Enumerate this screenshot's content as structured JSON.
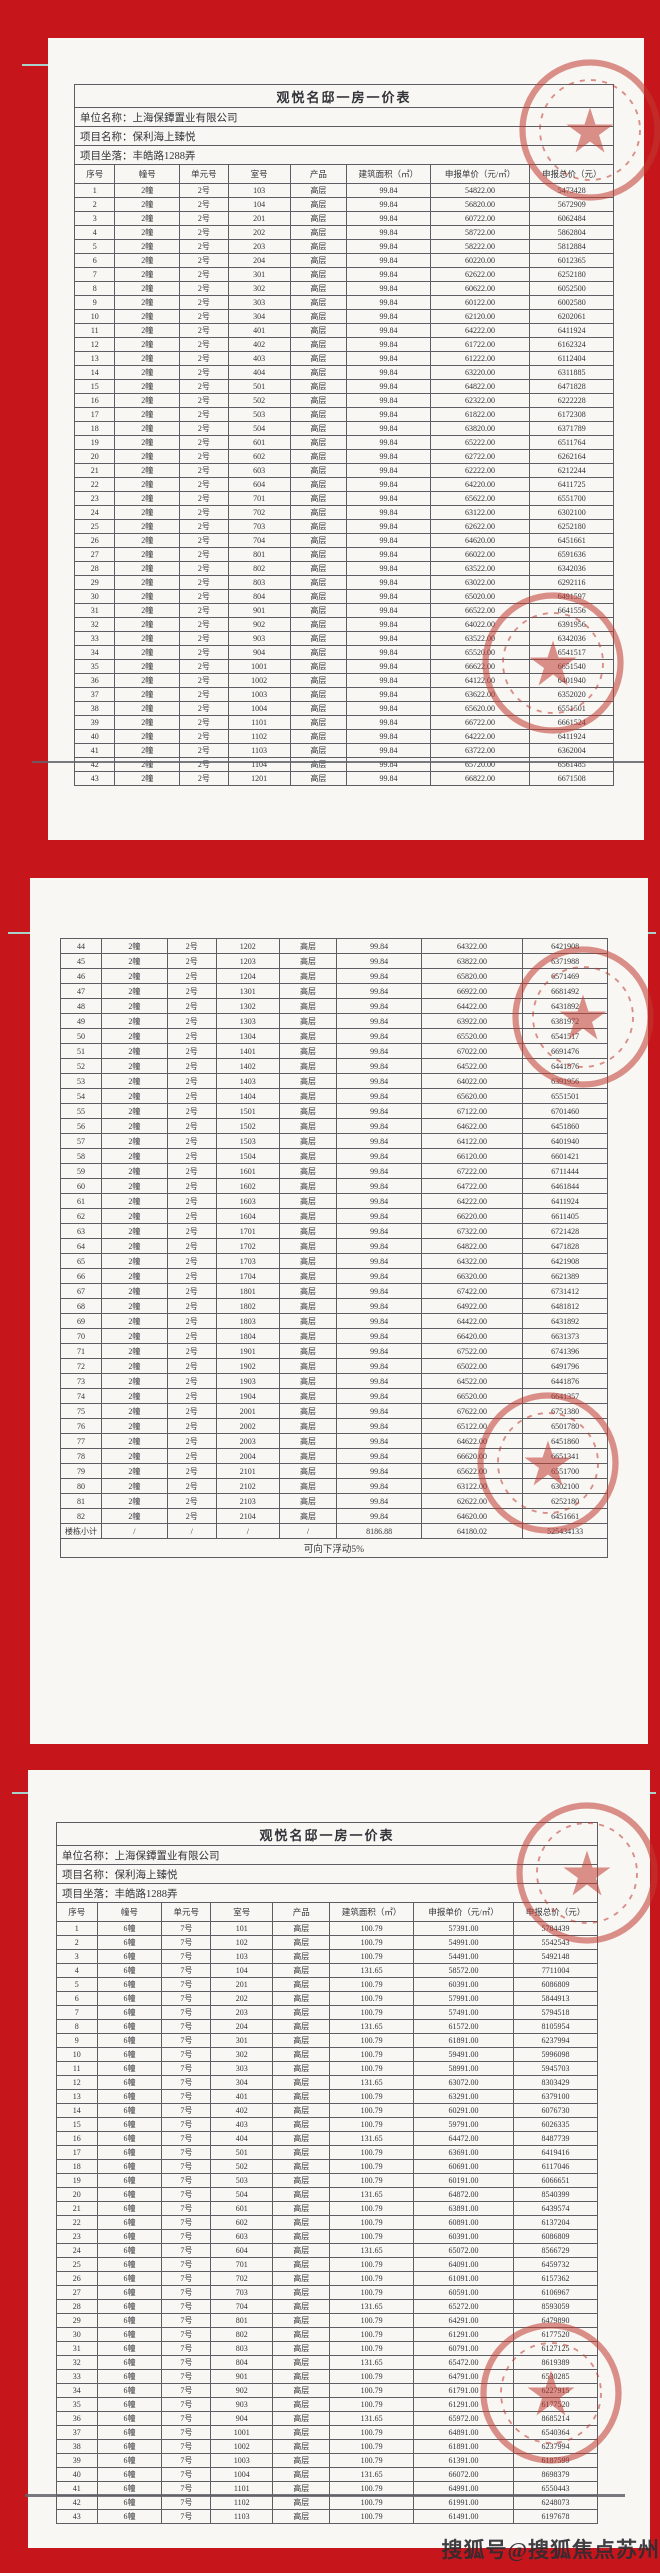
{
  "canvas": {
    "background": "#c6161b"
  },
  "watermark": {
    "text": "搜狐号@搜狐焦点苏州"
  },
  "doc": {
    "title": "观悦名邸一房一价表",
    "info": [
      "单位名称：上海保鐔置业有限公司",
      "项目名称：保利海上臻悦",
      "项目坐落：丰皓路1288弄"
    ],
    "columns": [
      "序号",
      "幢号",
      "单元号",
      "室号",
      "产品",
      "建筑面积（㎡）",
      "申报单价（元/㎡）",
      "申报总价（元）"
    ],
    "stamp_color": "#c23a31"
  },
  "page1": {
    "rows": [
      [
        "1",
        "2幢",
        "2号",
        "103",
        "高层",
        "99.84",
        "54822.00",
        "5473428"
      ],
      [
        "2",
        "2幢",
        "2号",
        "104",
        "高层",
        "99.84",
        "56820.00",
        "5672909"
      ],
      [
        "3",
        "2幢",
        "2号",
        "201",
        "高层",
        "99.84",
        "60722.00",
        "6062484"
      ],
      [
        "4",
        "2幢",
        "2号",
        "202",
        "高层",
        "99.84",
        "58722.00",
        "5862804"
      ],
      [
        "5",
        "2幢",
        "2号",
        "203",
        "高层",
        "99.84",
        "58222.00",
        "5812884"
      ],
      [
        "6",
        "2幢",
        "2号",
        "204",
        "高层",
        "99.84",
        "60220.00",
        "6012365"
      ],
      [
        "7",
        "2幢",
        "2号",
        "301",
        "高层",
        "99.84",
        "62622.00",
        "6252180"
      ],
      [
        "8",
        "2幢",
        "2号",
        "302",
        "高层",
        "99.84",
        "60622.00",
        "6052500"
      ],
      [
        "9",
        "2幢",
        "2号",
        "303",
        "高层",
        "99.84",
        "60122.00",
        "6002580"
      ],
      [
        "10",
        "2幢",
        "2号",
        "304",
        "高层",
        "99.84",
        "62120.00",
        "6202061"
      ],
      [
        "11",
        "2幢",
        "2号",
        "401",
        "高层",
        "99.84",
        "64222.00",
        "6411924"
      ],
      [
        "12",
        "2幢",
        "2号",
        "402",
        "高层",
        "99.84",
        "61722.00",
        "6162324"
      ],
      [
        "13",
        "2幢",
        "2号",
        "403",
        "高层",
        "99.84",
        "61222.00",
        "6112404"
      ],
      [
        "14",
        "2幢",
        "2号",
        "404",
        "高层",
        "99.84",
        "63220.00",
        "6311885"
      ],
      [
        "15",
        "2幢",
        "2号",
        "501",
        "高层",
        "99.84",
        "64822.00",
        "6471828"
      ],
      [
        "16",
        "2幢",
        "2号",
        "502",
        "高层",
        "99.84",
        "62322.00",
        "6222228"
      ],
      [
        "17",
        "2幢",
        "2号",
        "503",
        "高层",
        "99.84",
        "61822.00",
        "6172308"
      ],
      [
        "18",
        "2幢",
        "2号",
        "504",
        "高层",
        "99.84",
        "63820.00",
        "6371789"
      ],
      [
        "19",
        "2幢",
        "2号",
        "601",
        "高层",
        "99.84",
        "65222.00",
        "6511764"
      ],
      [
        "20",
        "2幢",
        "2号",
        "602",
        "高层",
        "99.84",
        "62722.00",
        "6262164"
      ],
      [
        "21",
        "2幢",
        "2号",
        "603",
        "高层",
        "99.84",
        "62222.00",
        "6212244"
      ],
      [
        "22",
        "2幢",
        "2号",
        "604",
        "高层",
        "99.84",
        "64220.00",
        "6411725"
      ],
      [
        "23",
        "2幢",
        "2号",
        "701",
        "高层",
        "99.84",
        "65622.00",
        "6551700"
      ],
      [
        "24",
        "2幢",
        "2号",
        "702",
        "高层",
        "99.84",
        "63122.00",
        "6302100"
      ],
      [
        "25",
        "2幢",
        "2号",
        "703",
        "高层",
        "99.84",
        "62622.00",
        "6252180"
      ],
      [
        "26",
        "2幢",
        "2号",
        "704",
        "高层",
        "99.84",
        "64620.00",
        "6451661"
      ],
      [
        "27",
        "2幢",
        "2号",
        "801",
        "高层",
        "99.84",
        "66022.00",
        "6591636"
      ],
      [
        "28",
        "2幢",
        "2号",
        "802",
        "高层",
        "99.84",
        "63522.00",
        "6342036"
      ],
      [
        "29",
        "2幢",
        "2号",
        "803",
        "高层",
        "99.84",
        "63022.00",
        "6292116"
      ],
      [
        "30",
        "2幢",
        "2号",
        "804",
        "高层",
        "99.84",
        "65020.00",
        "6491597"
      ],
      [
        "31",
        "2幢",
        "2号",
        "901",
        "高层",
        "99.84",
        "66522.00",
        "6641556"
      ],
      [
        "32",
        "2幢",
        "2号",
        "902",
        "高层",
        "99.84",
        "64022.00",
        "6391956"
      ],
      [
        "33",
        "2幢",
        "2号",
        "903",
        "高层",
        "99.84",
        "63522.00",
        "6342036"
      ],
      [
        "34",
        "2幢",
        "2号",
        "904",
        "高层",
        "99.84",
        "65520.00",
        "6541517"
      ],
      [
        "35",
        "2幢",
        "2号",
        "1001",
        "高层",
        "99.84",
        "66622.00",
        "6651540"
      ],
      [
        "36",
        "2幢",
        "2号",
        "1002",
        "高层",
        "99.84",
        "64122.00",
        "6401940"
      ],
      [
        "37",
        "2幢",
        "2号",
        "1003",
        "高层",
        "99.84",
        "63622.00",
        "6352020"
      ],
      [
        "38",
        "2幢",
        "2号",
        "1004",
        "高层",
        "99.84",
        "65620.00",
        "6551501"
      ],
      [
        "39",
        "2幢",
        "2号",
        "1101",
        "高层",
        "99.84",
        "66722.00",
        "6661524"
      ],
      [
        "40",
        "2幢",
        "2号",
        "1102",
        "高层",
        "99.84",
        "64222.00",
        "6411924"
      ],
      [
        "41",
        "2幢",
        "2号",
        "1103",
        "高层",
        "99.84",
        "63722.00",
        "6362004"
      ],
      [
        "42",
        "2幢",
        "2号",
        "1104",
        "高层",
        "99.84",
        "65720.00",
        "6561485"
      ],
      [
        "43",
        "2幢",
        "2号",
        "1201",
        "高层",
        "99.84",
        "66822.00",
        "6671508"
      ]
    ]
  },
  "page2": {
    "rows": [
      [
        "44",
        "2幢",
        "2号",
        "1202",
        "高层",
        "99.84",
        "64322.00",
        "6421908"
      ],
      [
        "45",
        "2幢",
        "2号",
        "1203",
        "高层",
        "99.84",
        "63822.00",
        "6371988"
      ],
      [
        "46",
        "2幢",
        "2号",
        "1204",
        "高层",
        "99.84",
        "65820.00",
        "6571469"
      ],
      [
        "47",
        "2幢",
        "2号",
        "1301",
        "高层",
        "99.84",
        "66922.00",
        "6681492"
      ],
      [
        "48",
        "2幢",
        "2号",
        "1302",
        "高层",
        "99.84",
        "64422.00",
        "6431892"
      ],
      [
        "49",
        "2幢",
        "2号",
        "1303",
        "高层",
        "99.84",
        "63922.00",
        "6381972"
      ],
      [
        "50",
        "2幢",
        "2号",
        "1304",
        "高层",
        "99.84",
        "65520.00",
        "6541517"
      ],
      [
        "51",
        "2幢",
        "2号",
        "1401",
        "高层",
        "99.84",
        "67022.00",
        "6691476"
      ],
      [
        "52",
        "2幢",
        "2号",
        "1402",
        "高层",
        "99.84",
        "64522.00",
        "6441876"
      ],
      [
        "53",
        "2幢",
        "2号",
        "1403",
        "高层",
        "99.84",
        "64022.00",
        "6391956"
      ],
      [
        "54",
        "2幢",
        "2号",
        "1404",
        "高层",
        "99.84",
        "65620.00",
        "6551501"
      ],
      [
        "55",
        "2幢",
        "2号",
        "1501",
        "高层",
        "99.84",
        "67122.00",
        "6701460"
      ],
      [
        "56",
        "2幢",
        "2号",
        "1502",
        "高层",
        "99.84",
        "64622.00",
        "6451860"
      ],
      [
        "57",
        "2幢",
        "2号",
        "1503",
        "高层",
        "99.84",
        "64122.00",
        "6401940"
      ],
      [
        "58",
        "2幢",
        "2号",
        "1504",
        "高层",
        "99.84",
        "66120.00",
        "6601421"
      ],
      [
        "59",
        "2幢",
        "2号",
        "1601",
        "高层",
        "99.84",
        "67222.00",
        "6711444"
      ],
      [
        "60",
        "2幢",
        "2号",
        "1602",
        "高层",
        "99.84",
        "64722.00",
        "6461844"
      ],
      [
        "61",
        "2幢",
        "2号",
        "1603",
        "高层",
        "99.84",
        "64222.00",
        "6411924"
      ],
      [
        "62",
        "2幢",
        "2号",
        "1604",
        "高层",
        "99.84",
        "66220.00",
        "6611405"
      ],
      [
        "63",
        "2幢",
        "2号",
        "1701",
        "高层",
        "99.84",
        "67322.00",
        "6721428"
      ],
      [
        "64",
        "2幢",
        "2号",
        "1702",
        "高层",
        "99.84",
        "64822.00",
        "6471828"
      ],
      [
        "65",
        "2幢",
        "2号",
        "1703",
        "高层",
        "99.84",
        "64322.00",
        "6421908"
      ],
      [
        "66",
        "2幢",
        "2号",
        "1704",
        "高层",
        "99.84",
        "66320.00",
        "6621389"
      ],
      [
        "67",
        "2幢",
        "2号",
        "1801",
        "高层",
        "99.84",
        "67422.00",
        "6731412"
      ],
      [
        "68",
        "2幢",
        "2号",
        "1802",
        "高层",
        "99.84",
        "64922.00",
        "6481812"
      ],
      [
        "69",
        "2幢",
        "2号",
        "1803",
        "高层",
        "99.84",
        "64422.00",
        "6431892"
      ],
      [
        "70",
        "2幢",
        "2号",
        "1804",
        "高层",
        "99.84",
        "66420.00",
        "6631373"
      ],
      [
        "71",
        "2幢",
        "2号",
        "1901",
        "高层",
        "99.84",
        "67522.00",
        "6741396"
      ],
      [
        "72",
        "2幢",
        "2号",
        "1902",
        "高层",
        "99.84",
        "65022.00",
        "6491796"
      ],
      [
        "73",
        "2幢",
        "2号",
        "1903",
        "高层",
        "99.84",
        "64522.00",
        "6441876"
      ],
      [
        "74",
        "2幢",
        "2号",
        "1904",
        "高层",
        "99.84",
        "66520.00",
        "6641357"
      ],
      [
        "75",
        "2幢",
        "2号",
        "2001",
        "高层",
        "99.84",
        "67622.00",
        "6751380"
      ],
      [
        "76",
        "2幢",
        "2号",
        "2002",
        "高层",
        "99.84",
        "65122.00",
        "6501780"
      ],
      [
        "77",
        "2幢",
        "2号",
        "2003",
        "高层",
        "99.84",
        "64622.00",
        "6451860"
      ],
      [
        "78",
        "2幢",
        "2号",
        "2004",
        "高层",
        "99.84",
        "66620.00",
        "6651341"
      ],
      [
        "79",
        "2幢",
        "2号",
        "2101",
        "高层",
        "99.84",
        "65622.00",
        "6551700"
      ],
      [
        "80",
        "2幢",
        "2号",
        "2102",
        "高层",
        "99.84",
        "63122.00",
        "6302100"
      ],
      [
        "81",
        "2幢",
        "2号",
        "2103",
        "高层",
        "99.84",
        "62622.00",
        "6252180"
      ],
      [
        "82",
        "2幢",
        "2号",
        "2104",
        "高层",
        "99.84",
        "64620.00",
        "6451661"
      ]
    ],
    "subtotal_rows": [
      [
        "楼栋小计",
        "/",
        "/",
        "/",
        "/",
        "8186.88",
        "64180.02",
        "525434133"
      ]
    ],
    "note": "可向下浮动5%"
  },
  "page3": {
    "rows": [
      [
        "1",
        "6幢",
        "7号",
        "101",
        "高层",
        "100.79",
        "57391.00",
        "5784439"
      ],
      [
        "2",
        "6幢",
        "7号",
        "102",
        "高层",
        "100.79",
        "54991.00",
        "5542543"
      ],
      [
        "3",
        "6幢",
        "7号",
        "103",
        "高层",
        "100.79",
        "54491.00",
        "5492148"
      ],
      [
        "4",
        "6幢",
        "7号",
        "104",
        "高层",
        "131.65",
        "58572.00",
        "7711004"
      ],
      [
        "5",
        "6幢",
        "7号",
        "201",
        "高层",
        "100.79",
        "60391.00",
        "6086809"
      ],
      [
        "6",
        "6幢",
        "7号",
        "202",
        "高层",
        "100.79",
        "57991.00",
        "5844913"
      ],
      [
        "7",
        "6幢",
        "7号",
        "203",
        "高层",
        "100.79",
        "57491.00",
        "5794518"
      ],
      [
        "8",
        "6幢",
        "7号",
        "204",
        "高层",
        "131.65",
        "61572.00",
        "8105954"
      ],
      [
        "9",
        "6幢",
        "7号",
        "301",
        "高层",
        "100.79",
        "61891.00",
        "6237994"
      ],
      [
        "10",
        "6幢",
        "7号",
        "302",
        "高层",
        "100.79",
        "59491.00",
        "5996098"
      ],
      [
        "11",
        "6幢",
        "7号",
        "303",
        "高层",
        "100.79",
        "58991.00",
        "5945703"
      ],
      [
        "12",
        "6幢",
        "7号",
        "304",
        "高层",
        "131.65",
        "63072.00",
        "8303429"
      ],
      [
        "13",
        "6幢",
        "7号",
        "401",
        "高层",
        "100.79",
        "63291.00",
        "6379100"
      ],
      [
        "14",
        "6幢",
        "7号",
        "402",
        "高层",
        "100.79",
        "60291.00",
        "6076730"
      ],
      [
        "15",
        "6幢",
        "7号",
        "403",
        "高层",
        "100.79",
        "59791.00",
        "6026335"
      ],
      [
        "16",
        "6幢",
        "7号",
        "404",
        "高层",
        "131.65",
        "64472.00",
        "8487739"
      ],
      [
        "17",
        "6幢",
        "7号",
        "501",
        "高层",
        "100.79",
        "63691.00",
        "6419416"
      ],
      [
        "18",
        "6幢",
        "7号",
        "502",
        "高层",
        "100.79",
        "60691.00",
        "6117046"
      ],
      [
        "19",
        "6幢",
        "7号",
        "503",
        "高层",
        "100.79",
        "60191.00",
        "6066651"
      ],
      [
        "20",
        "6幢",
        "7号",
        "504",
        "高层",
        "131.65",
        "64872.00",
        "8540399"
      ],
      [
        "21",
        "6幢",
        "7号",
        "601",
        "高层",
        "100.79",
        "63891.00",
        "6439574"
      ],
      [
        "22",
        "6幢",
        "7号",
        "602",
        "高层",
        "100.79",
        "60891.00",
        "6137204"
      ],
      [
        "23",
        "6幢",
        "7号",
        "603",
        "高层",
        "100.79",
        "60391.00",
        "6086809"
      ],
      [
        "24",
        "6幢",
        "7号",
        "604",
        "高层",
        "131.65",
        "65072.00",
        "8566729"
      ],
      [
        "25",
        "6幢",
        "7号",
        "701",
        "高层",
        "100.79",
        "64091.00",
        "6459732"
      ],
      [
        "26",
        "6幢",
        "7号",
        "702",
        "高层",
        "100.79",
        "61091.00",
        "6157362"
      ],
      [
        "27",
        "6幢",
        "7号",
        "703",
        "高层",
        "100.79",
        "60591.00",
        "6106967"
      ],
      [
        "28",
        "6幢",
        "7号",
        "704",
        "高层",
        "131.65",
        "65272.00",
        "8593059"
      ],
      [
        "29",
        "6幢",
        "7号",
        "801",
        "高层",
        "100.79",
        "64291.00",
        "6479890"
      ],
      [
        "30",
        "6幢",
        "7号",
        "802",
        "高层",
        "100.79",
        "61291.00",
        "6177520"
      ],
      [
        "31",
        "6幢",
        "7号",
        "803",
        "高层",
        "100.79",
        "60791.00",
        "6127125"
      ],
      [
        "32",
        "6幢",
        "7号",
        "804",
        "高层",
        "131.65",
        "65472.00",
        "8619389"
      ],
      [
        "33",
        "6幢",
        "7号",
        "901",
        "高层",
        "100.79",
        "64791.00",
        "6530285"
      ],
      [
        "34",
        "6幢",
        "7号",
        "902",
        "高层",
        "100.79",
        "61791.00",
        "6227915"
      ],
      [
        "35",
        "6幢",
        "7号",
        "903",
        "高层",
        "100.79",
        "61291.00",
        "6177520"
      ],
      [
        "36",
        "6幢",
        "7号",
        "904",
        "高层",
        "131.65",
        "65972.00",
        "8685214"
      ],
      [
        "37",
        "6幢",
        "7号",
        "1001",
        "高层",
        "100.79",
        "64891.00",
        "6540364"
      ],
      [
        "38",
        "6幢",
        "7号",
        "1002",
        "高层",
        "100.79",
        "61891.00",
        "6237994"
      ],
      [
        "39",
        "6幢",
        "7号",
        "1003",
        "高层",
        "100.79",
        "61391.00",
        "6187599"
      ],
      [
        "40",
        "6幢",
        "7号",
        "1004",
        "高层",
        "131.65",
        "66072.00",
        "8698379"
      ],
      [
        "41",
        "6幢",
        "7号",
        "1101",
        "高层",
        "100.79",
        "64991.00",
        "6550443"
      ],
      [
        "42",
        "6幢",
        "7号",
        "1102",
        "高层",
        "100.79",
        "61991.00",
        "6248073"
      ],
      [
        "43",
        "6幢",
        "7号",
        "1103",
        "高层",
        "100.79",
        "61491.00",
        "6197678"
      ]
    ]
  }
}
